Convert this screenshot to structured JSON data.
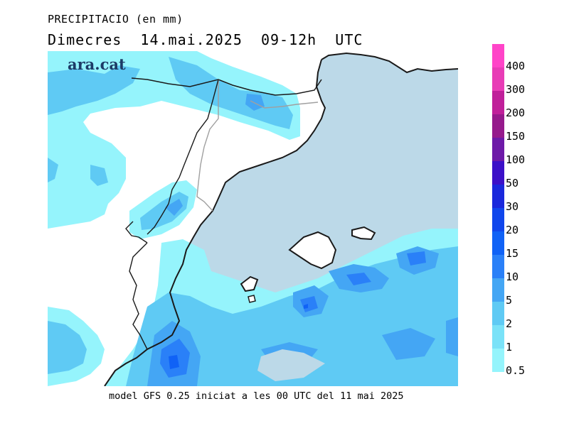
{
  "header": {
    "variable": "PRECIPITACIO (en mm)",
    "date_line": "Dimecres  14.mai.2025  09-12h  UTC"
  },
  "logo": {
    "text": "ara.cat"
  },
  "footer": {
    "model_text": "model GFS 0.25 iniciat a les 00 UTC del 11 mai 2025"
  },
  "colors": {
    "sea": "#bcd9e8",
    "land": "#ffffff",
    "coast": "#1a1a1a",
    "border": "#a0a0a0"
  },
  "legend": {
    "items": [
      {
        "value": "400",
        "color": "#ff44c8"
      },
      {
        "value": "300",
        "color": "#e83cb6"
      },
      {
        "value": "200",
        "color": "#c0209a"
      },
      {
        "value": "150",
        "color": "#961a8c"
      },
      {
        "value": "100",
        "color": "#6e1aa8"
      },
      {
        "value": "50",
        "color": "#3c10c8"
      },
      {
        "value": "30",
        "color": "#1a28dc"
      },
      {
        "value": "20",
        "color": "#1046ec"
      },
      {
        "value": "15",
        "color": "#1062f6"
      },
      {
        "value": "10",
        "color": "#2a80f8"
      },
      {
        "value": "5",
        "color": "#44a6f4"
      },
      {
        "value": "2",
        "color": "#5fcaf4"
      },
      {
        "value": "1",
        "color": "#7ae2f8"
      },
      {
        "value": "0.5",
        "color": "#95f4fc"
      }
    ]
  }
}
